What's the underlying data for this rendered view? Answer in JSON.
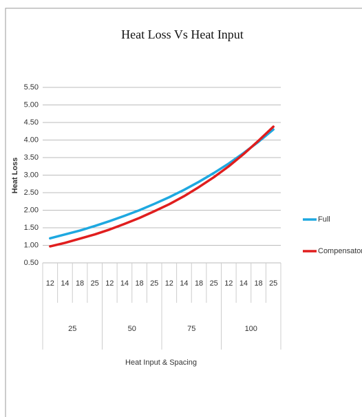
{
  "chart_data": {
    "type": "line",
    "title": "Heat Loss Vs Heat Input",
    "y_label": "Heat Loss",
    "x_label": "Heat Input & Spacing",
    "categories": [
      "12",
      "14",
      "18",
      "25",
      "12",
      "14",
      "18",
      "25",
      "12",
      "14",
      "18",
      "25",
      "12",
      "14",
      "18",
      "25"
    ],
    "category_groups": [
      "25",
      "50",
      "75",
      "100"
    ],
    "series": [
      {
        "name": "Full",
        "color": "#1ea8e0",
        "values": [
          1.2,
          1.31,
          1.42,
          1.55,
          1.69,
          1.84,
          2.0,
          2.18,
          2.37,
          2.58,
          2.81,
          3.06,
          3.33,
          3.63,
          3.95,
          4.3
        ]
      },
      {
        "name": "Compensatory",
        "color": "#e01e1e",
        "values": [
          0.97,
          1.07,
          1.19,
          1.31,
          1.45,
          1.61,
          1.78,
          1.97,
          2.17,
          2.4,
          2.66,
          2.94,
          3.25,
          3.6,
          3.98,
          4.38
        ]
      }
    ],
    "ylim": [
      0.5,
      5.5
    ],
    "yticks": [
      {
        "value": 0.5,
        "label": "0.50"
      },
      {
        "value": 1,
        "label": "1.00"
      },
      {
        "value": 1.5,
        "label": "1.50"
      },
      {
        "value": 2,
        "label": "2.00"
      },
      {
        "value": 2.5,
        "label": "2.50"
      },
      {
        "value": 3,
        "label": "3.00"
      },
      {
        "value": 3.5,
        "label": "3.50"
      },
      {
        "value": 4,
        "label": "4.00"
      },
      {
        "value": 4.5,
        "label": "4.50"
      },
      {
        "value": 5,
        "label": "5.00"
      },
      {
        "value": 5.5,
        "label": "5.50"
      }
    ],
    "grid": true,
    "legend": "right"
  }
}
